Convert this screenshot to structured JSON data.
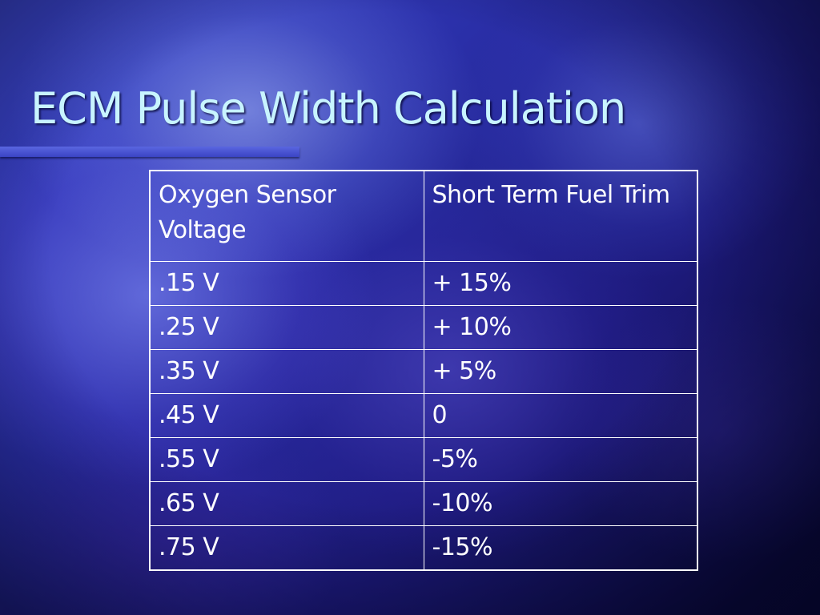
{
  "slide": {
    "title": "ECM Pulse Width Calculation"
  },
  "table": {
    "headers": [
      "Oxygen Sensor Voltage",
      "Short Term Fuel Trim"
    ],
    "rows": [
      [
        ".15 V",
        "+ 15%"
      ],
      [
        ".25 V",
        "+ 10%"
      ],
      [
        ".35 V",
        "+ 5%"
      ],
      [
        ".45 V",
        "0"
      ],
      [
        ".55 V",
        "-5%"
      ],
      [
        ".65 V",
        "-10%"
      ],
      [
        ".75 V",
        "-15%"
      ]
    ]
  },
  "colors": {
    "title_text": "#c8f4ff",
    "table_text": "#ffffff",
    "table_border": "#ffffff",
    "background_primary": "#2a2fa8",
    "underline_bar": "#4a55d4"
  }
}
